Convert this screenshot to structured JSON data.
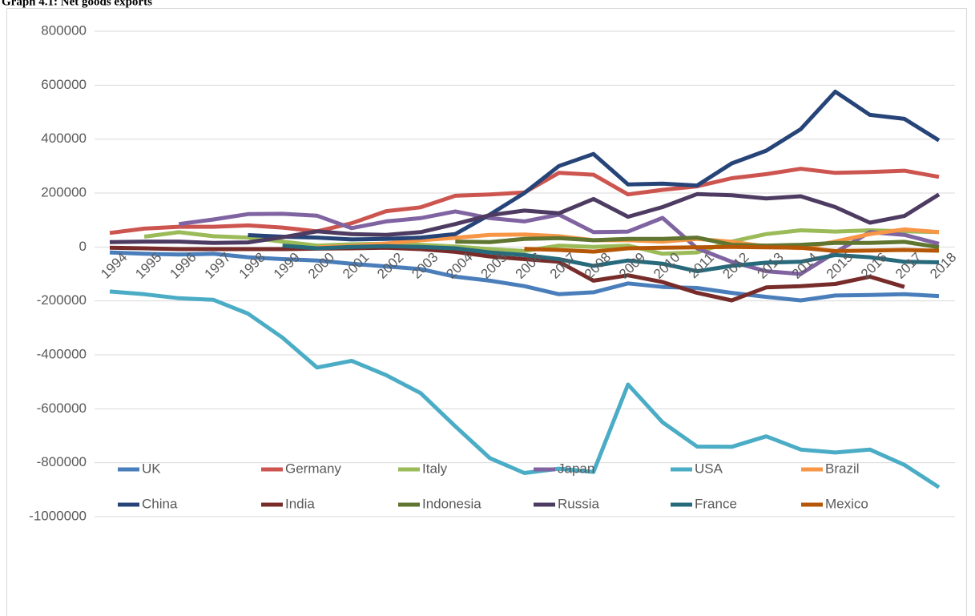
{
  "chart_data": {
    "type": "line",
    "title": "Graph 4.1: Net goods exports",
    "categories": [
      "1994",
      "1995",
      "1996",
      "1997",
      "1998",
      "1999",
      "2000",
      "2001",
      "2002",
      "2003",
      "2004",
      "2005",
      "2006",
      "2007",
      "2008",
      "2009",
      "2010",
      "2011",
      "2012",
      "2013",
      "2014",
      "2015",
      "2016",
      "2017",
      "2018"
    ],
    "ylim": [
      -1000000,
      800000
    ],
    "yticks": [
      -1000000,
      -800000,
      -600000,
      -400000,
      -200000,
      0,
      200000,
      400000,
      600000,
      800000
    ],
    "grid": true,
    "legend": "bottom",
    "series": [
      {
        "name": "UK",
        "color": "#4a7ebb",
        "values": [
          -20000,
          -25000,
          -28000,
          -25000,
          -38000,
          -45000,
          -50000,
          -62000,
          -72000,
          -82000,
          -110000,
          -125000,
          -145000,
          -175000,
          -168000,
          -135000,
          -148000,
          -152000,
          -170000,
          -185000,
          -198000,
          -180000,
          -178000,
          -175000,
          -182000
        ]
      },
      {
        "name": "Germany",
        "color": "#cd5550",
        "values": [
          52000,
          68000,
          75000,
          75000,
          80000,
          72000,
          58000,
          88000,
          133000,
          147000,
          190000,
          195000,
          202000,
          275000,
          268000,
          195000,
          212000,
          225000,
          255000,
          270000,
          290000,
          275000,
          278000,
          283000,
          260000
        ]
      },
      {
        "name": "Italy",
        "color": "#9bbb59",
        "values": [
          null,
          38000,
          55000,
          40000,
          35000,
          20000,
          5000,
          10000,
          12000,
          8000,
          2000,
          -8000,
          -15000,
          5000,
          0,
          5000,
          -25000,
          -20000,
          20000,
          48000,
          62000,
          57000,
          62000,
          58000,
          55000
        ]
      },
      {
        "name": "Japan",
        "color": "#8064a2",
        "values": [
          null,
          null,
          85000,
          102000,
          122000,
          123000,
          116000,
          70000,
          95000,
          107000,
          132000,
          107000,
          95000,
          120000,
          55000,
          57000,
          108000,
          -5000,
          -55000,
          -90000,
          -100000,
          -20000,
          55000,
          45000,
          12000
        ]
      },
      {
        "name": "USA",
        "color": "#4bacc6",
        "values": [
          -165000,
          -175000,
          -190000,
          -196000,
          -247000,
          -336000,
          -447000,
          -422000,
          -475000,
          -542000,
          -665000,
          -783000,
          -838000,
          -822000,
          -834000,
          -510000,
          -650000,
          -740000,
          -741000,
          -702000,
          -751000,
          -762000,
          -751000,
          -808000,
          -891000
        ]
      },
      {
        "name": "Brazil",
        "color": "#f79646",
        "values": [
          null,
          null,
          null,
          null,
          null,
          null,
          -1000,
          3000,
          13000,
          25000,
          34000,
          45000,
          46000,
          40000,
          25000,
          25000,
          20000,
          30000,
          19000,
          2000,
          -4000,
          20000,
          48000,
          65000,
          55000
        ]
      },
      {
        "name": "China",
        "color": "#264478",
        "values": [
          null,
          null,
          null,
          null,
          44000,
          38000,
          35000,
          28000,
          30000,
          35000,
          48000,
          120000,
          200000,
          300000,
          345000,
          232000,
          235000,
          228000,
          310000,
          357000,
          437000,
          576000,
          490000,
          475000,
          395000
        ]
      },
      {
        "name": "India",
        "color": "#772c2a",
        "values": [
          -3000,
          -5000,
          -8000,
          -8000,
          -8000,
          -8000,
          -6000,
          -5000,
          -3000,
          -8000,
          -18000,
          -35000,
          -45000,
          -55000,
          -125000,
          -105000,
          -130000,
          -170000,
          -198000,
          -150000,
          -145000,
          -137000,
          -110000,
          -148000,
          null
        ]
      },
      {
        "name": "Indonesia",
        "color": "#5f7530",
        "values": [
          null,
          null,
          null,
          null,
          null,
          null,
          null,
          null,
          null,
          null,
          20000,
          18000,
          30000,
          33000,
          25000,
          30000,
          30000,
          35000,
          8000,
          5000,
          8000,
          15000,
          15000,
          19000,
          -1000
        ]
      },
      {
        "name": "Russia",
        "color": "#4d3b62",
        "values": [
          18000,
          20000,
          20000,
          15000,
          17000,
          36000,
          58000,
          48000,
          45000,
          55000,
          85000,
          118000,
          135000,
          125000,
          178000,
          112000,
          148000,
          196000,
          192000,
          180000,
          188000,
          148000,
          90000,
          115000,
          195000
        ]
      },
      {
        "name": "France",
        "color": "#276a7c",
        "values": [
          null,
          null,
          null,
          null,
          null,
          5000,
          -5000,
          0,
          3000,
          0,
          -5000,
          -20000,
          -30000,
          -45000,
          -70000,
          -50000,
          -62000,
          -90000,
          -70000,
          -58000,
          -55000,
          -30000,
          -38000,
          -55000,
          -57000
        ]
      },
      {
        "name": "Mexico",
        "color": "#b65708",
        "values": [
          null,
          null,
          null,
          null,
          null,
          null,
          null,
          null,
          null,
          null,
          null,
          null,
          -7000,
          -11000,
          -17000,
          -5000,
          -3000,
          -1000,
          0,
          -1000,
          -3000,
          -15000,
          -13000,
          -11000,
          -14000
        ]
      }
    ]
  }
}
